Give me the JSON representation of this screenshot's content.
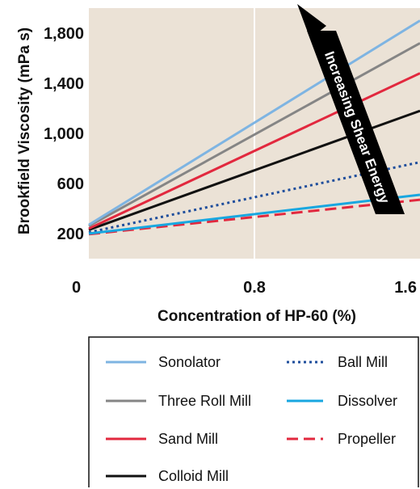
{
  "chart_data": {
    "type": "line",
    "xlabel": "Concentration of HP-60 (%)",
    "ylabel": "Brookfield Viscosity (mPa s)",
    "xlim": [
      0,
      1.6
    ],
    "ylim": [
      0,
      2000
    ],
    "x_ticks": [
      {
        "value": 0,
        "label": "0"
      },
      {
        "value": 0.8,
        "label": "0.8"
      },
      {
        "value": 1.6,
        "label": "1.6"
      }
    ],
    "y_ticks": [
      {
        "value": 200,
        "label": "200"
      },
      {
        "value": 600,
        "label": "600"
      },
      {
        "value": 1000,
        "label": "1,000"
      },
      {
        "value": 1400,
        "label": "1,400"
      },
      {
        "value": 1800,
        "label": "1,800"
      }
    ],
    "grid": "vertical at 0.8",
    "annotation": {
      "text": "Increasing Shear Energy"
    },
    "series": [
      {
        "name": "Sonolator",
        "x": [
          0,
          1.6
        ],
        "y": [
          270,
          1900
        ],
        "color": "#7eb4e2",
        "style": "solid"
      },
      {
        "name": "Three Roll Mill",
        "x": [
          0,
          1.6
        ],
        "y": [
          260,
          1720
        ],
        "color": "#858585",
        "style": "solid"
      },
      {
        "name": "Sand Mill",
        "x": [
          0,
          1.6
        ],
        "y": [
          240,
          1480
        ],
        "color": "#e2283e",
        "style": "solid"
      },
      {
        "name": "Colloid Mill",
        "x": [
          0,
          1.6
        ],
        "y": [
          230,
          1180
        ],
        "color": "#111111",
        "style": "solid"
      },
      {
        "name": "Ball Mill",
        "x": [
          0,
          1.6
        ],
        "y": [
          210,
          770
        ],
        "color": "#1f4e9c",
        "style": "dotted"
      },
      {
        "name": "Dissolver",
        "x": [
          0,
          1.6
        ],
        "y": [
          200,
          510
        ],
        "color": "#18a7e0",
        "style": "solid"
      },
      {
        "name": "Propeller",
        "x": [
          0,
          1.6
        ],
        "y": [
          195,
          470
        ],
        "color": "#e2283e",
        "style": "dashed"
      }
    ],
    "legend": {
      "placement": "bottom",
      "left_column": [
        "Sonolator",
        "Three Roll Mill",
        "Sand Mill",
        "Colloid Mill"
      ],
      "right_column": [
        "Ball Mill",
        "Dissolver",
        "Propeller"
      ]
    },
    "background_color": "#ebe2d6"
  }
}
